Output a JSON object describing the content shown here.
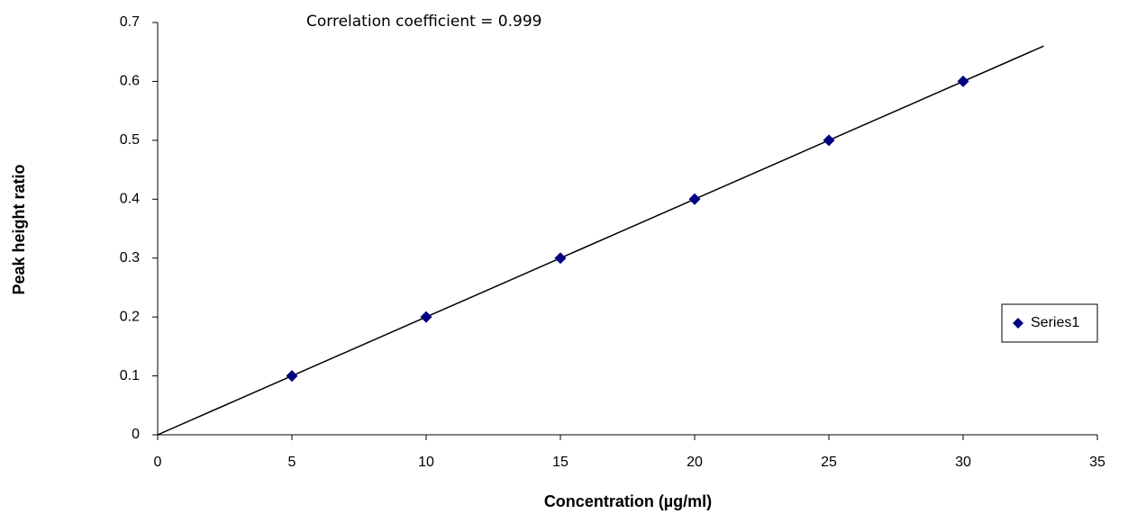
{
  "chart_data": {
    "type": "scatter",
    "annotation": "Correlation coefficient = 0.999",
    "x_label": "Concentration (µg/ml)",
    "y_label": "Peak height ratio",
    "x": [
      5,
      10,
      15,
      20,
      25,
      30
    ],
    "series": [
      {
        "name": "Series1",
        "color": "#000080",
        "values": [
          0.1,
          0.2,
          0.3,
          0.4,
          0.5,
          0.6
        ]
      }
    ],
    "trendline": {
      "x": [
        0,
        33
      ],
      "values": [
        0,
        0.66
      ],
      "color": "#000000"
    },
    "xlim": [
      0,
      35
    ],
    "xticks": [
      0,
      5,
      10,
      15,
      20,
      25,
      30,
      35
    ],
    "ylim": [
      0,
      0.7
    ],
    "yticks": [
      0,
      0.1,
      0.2,
      0.3,
      0.4,
      0.5,
      0.6,
      0.7
    ],
    "grid": false,
    "legend": "right"
  }
}
